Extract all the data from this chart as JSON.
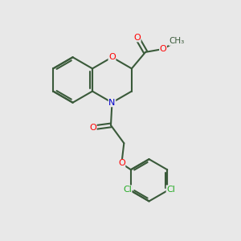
{
  "background_color": "#e8e8e8",
  "bond_color": "#3a5a3a",
  "bond_width": 1.5,
  "atom_colors": {
    "O": "#ff0000",
    "N": "#0000cc",
    "C": "#3a5a3a",
    "Cl": "#22aa22"
  },
  "font_size": 8,
  "figsize": [
    3.0,
    3.0
  ],
  "dpi": 100
}
